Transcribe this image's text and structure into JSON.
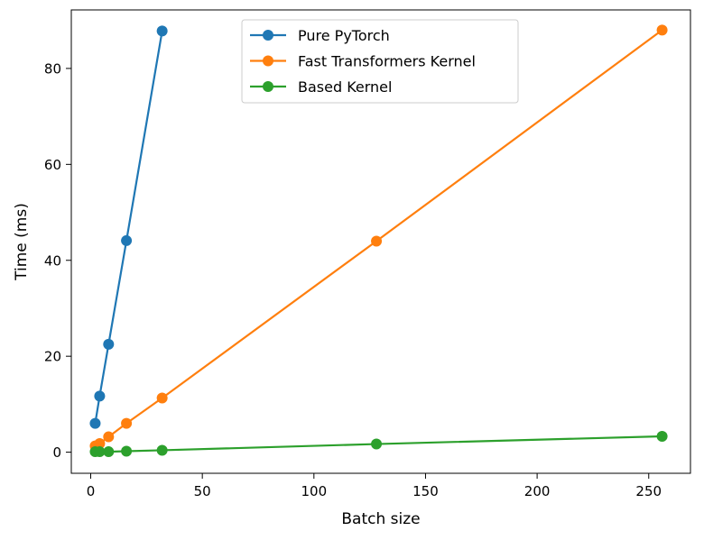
{
  "chart_data": {
    "type": "line",
    "title": "",
    "xlabel": "Batch size",
    "ylabel": "Time (ms)",
    "xlim": [
      -8.7,
      268.7
    ],
    "ylim": [
      -4.4,
      92.2
    ],
    "xticks": [
      0,
      50,
      100,
      150,
      200,
      250
    ],
    "yticks": [
      0,
      20,
      40,
      60,
      80
    ],
    "grid": false,
    "legend_position": "top-center",
    "series": [
      {
        "name": "Pure PyTorch",
        "color": "#1f77b4",
        "x": [
          2,
          4,
          8,
          16,
          32
        ],
        "y": [
          6.0,
          11.7,
          22.5,
          44.1,
          87.8
        ]
      },
      {
        "name": "Fast Transformers Kernel",
        "color": "#ff7f0e",
        "x": [
          2,
          4,
          8,
          16,
          32,
          128,
          256
        ],
        "y": [
          1.3,
          1.8,
          3.2,
          6.0,
          11.3,
          44.0,
          88.0
        ]
      },
      {
        "name": "Based Kernel",
        "color": "#2ca02c",
        "x": [
          2,
          4,
          8,
          16,
          32,
          128,
          256
        ],
        "y": [
          0.1,
          0.1,
          0.1,
          0.2,
          0.4,
          1.7,
          3.3
        ]
      }
    ]
  }
}
